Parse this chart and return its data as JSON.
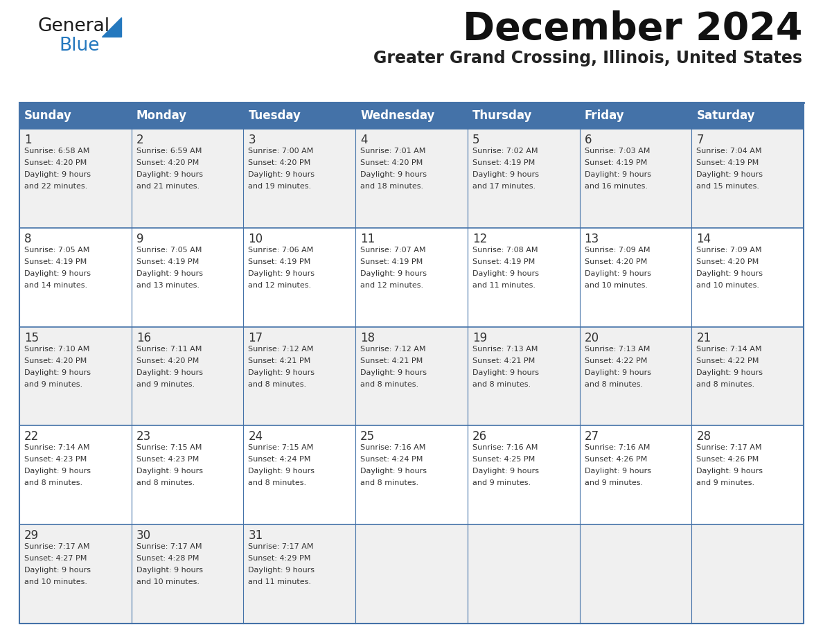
{
  "title": "December 2024",
  "subtitle": "Greater Grand Crossing, Illinois, United States",
  "header_bg": "#4472A8",
  "header_text": "#FFFFFF",
  "row_bg_odd": "#F0F0F0",
  "row_bg_even": "#FFFFFF",
  "border_color": "#4472A8",
  "text_color": "#333333",
  "day_headers": [
    "Sunday",
    "Monday",
    "Tuesday",
    "Wednesday",
    "Thursday",
    "Friday",
    "Saturday"
  ],
  "calendar_data": [
    [
      {
        "day": 1,
        "sunrise": "6:58 AM",
        "sunset": "4:20 PM",
        "daylight": "9 hours\nand 22 minutes."
      },
      {
        "day": 2,
        "sunrise": "6:59 AM",
        "sunset": "4:20 PM",
        "daylight": "9 hours\nand 21 minutes."
      },
      {
        "day": 3,
        "sunrise": "7:00 AM",
        "sunset": "4:20 PM",
        "daylight": "9 hours\nand 19 minutes."
      },
      {
        "day": 4,
        "sunrise": "7:01 AM",
        "sunset": "4:20 PM",
        "daylight": "9 hours\nand 18 minutes."
      },
      {
        "day": 5,
        "sunrise": "7:02 AM",
        "sunset": "4:19 PM",
        "daylight": "9 hours\nand 17 minutes."
      },
      {
        "day": 6,
        "sunrise": "7:03 AM",
        "sunset": "4:19 PM",
        "daylight": "9 hours\nand 16 minutes."
      },
      {
        "day": 7,
        "sunrise": "7:04 AM",
        "sunset": "4:19 PM",
        "daylight": "9 hours\nand 15 minutes."
      }
    ],
    [
      {
        "day": 8,
        "sunrise": "7:05 AM",
        "sunset": "4:19 PM",
        "daylight": "9 hours\nand 14 minutes."
      },
      {
        "day": 9,
        "sunrise": "7:05 AM",
        "sunset": "4:19 PM",
        "daylight": "9 hours\nand 13 minutes."
      },
      {
        "day": 10,
        "sunrise": "7:06 AM",
        "sunset": "4:19 PM",
        "daylight": "9 hours\nand 12 minutes."
      },
      {
        "day": 11,
        "sunrise": "7:07 AM",
        "sunset": "4:19 PM",
        "daylight": "9 hours\nand 12 minutes."
      },
      {
        "day": 12,
        "sunrise": "7:08 AM",
        "sunset": "4:19 PM",
        "daylight": "9 hours\nand 11 minutes."
      },
      {
        "day": 13,
        "sunrise": "7:09 AM",
        "sunset": "4:20 PM",
        "daylight": "9 hours\nand 10 minutes."
      },
      {
        "day": 14,
        "sunrise": "7:09 AM",
        "sunset": "4:20 PM",
        "daylight": "9 hours\nand 10 minutes."
      }
    ],
    [
      {
        "day": 15,
        "sunrise": "7:10 AM",
        "sunset": "4:20 PM",
        "daylight": "9 hours\nand 9 minutes."
      },
      {
        "day": 16,
        "sunrise": "7:11 AM",
        "sunset": "4:20 PM",
        "daylight": "9 hours\nand 9 minutes."
      },
      {
        "day": 17,
        "sunrise": "7:12 AM",
        "sunset": "4:21 PM",
        "daylight": "9 hours\nand 8 minutes."
      },
      {
        "day": 18,
        "sunrise": "7:12 AM",
        "sunset": "4:21 PM",
        "daylight": "9 hours\nand 8 minutes."
      },
      {
        "day": 19,
        "sunrise": "7:13 AM",
        "sunset": "4:21 PM",
        "daylight": "9 hours\nand 8 minutes."
      },
      {
        "day": 20,
        "sunrise": "7:13 AM",
        "sunset": "4:22 PM",
        "daylight": "9 hours\nand 8 minutes."
      },
      {
        "day": 21,
        "sunrise": "7:14 AM",
        "sunset": "4:22 PM",
        "daylight": "9 hours\nand 8 minutes."
      }
    ],
    [
      {
        "day": 22,
        "sunrise": "7:14 AM",
        "sunset": "4:23 PM",
        "daylight": "9 hours\nand 8 minutes."
      },
      {
        "day": 23,
        "sunrise": "7:15 AM",
        "sunset": "4:23 PM",
        "daylight": "9 hours\nand 8 minutes."
      },
      {
        "day": 24,
        "sunrise": "7:15 AM",
        "sunset": "4:24 PM",
        "daylight": "9 hours\nand 8 minutes."
      },
      {
        "day": 25,
        "sunrise": "7:16 AM",
        "sunset": "4:24 PM",
        "daylight": "9 hours\nand 8 minutes."
      },
      {
        "day": 26,
        "sunrise": "7:16 AM",
        "sunset": "4:25 PM",
        "daylight": "9 hours\nand 9 minutes."
      },
      {
        "day": 27,
        "sunrise": "7:16 AM",
        "sunset": "4:26 PM",
        "daylight": "9 hours\nand 9 minutes."
      },
      {
        "day": 28,
        "sunrise": "7:17 AM",
        "sunset": "4:26 PM",
        "daylight": "9 hours\nand 9 minutes."
      }
    ],
    [
      {
        "day": 29,
        "sunrise": "7:17 AM",
        "sunset": "4:27 PM",
        "daylight": "9 hours\nand 10 minutes."
      },
      {
        "day": 30,
        "sunrise": "7:17 AM",
        "sunset": "4:28 PM",
        "daylight": "9 hours\nand 10 minutes."
      },
      {
        "day": 31,
        "sunrise": "7:17 AM",
        "sunset": "4:29 PM",
        "daylight": "9 hours\nand 11 minutes."
      },
      null,
      null,
      null,
      null
    ]
  ],
  "logo_general_color": "#1a1a1a",
  "logo_blue_color": "#2478BE",
  "logo_triangle_color": "#2478BE",
  "fig_width": 11.88,
  "fig_height": 9.18,
  "dpi": 100
}
